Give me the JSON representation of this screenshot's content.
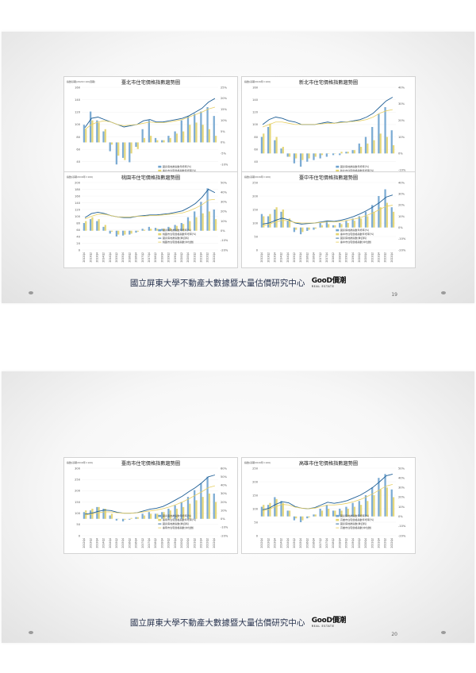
{
  "pages": [
    {
      "footer": "國立屏東大學不動產大數據暨大量估價研究中心",
      "logo": "GooD價潮",
      "logo_sub": "REAL ESTATE",
      "page_number": "19"
    },
    {
      "footer": "國立屏東大學不動產大數據暨大量估價研究中心",
      "logo": "GooD價潮",
      "logo_sub": "REAL ESTATE",
      "page_number": "20"
    }
  ],
  "colors": {
    "bar": "#6fa3cf",
    "bar2": "#e3d46e",
    "line_main": "#1f5f96",
    "line_yellow": "#e7cf63",
    "line_green": "#a9cf62"
  },
  "chart_data": [
    {
      "type": "line",
      "title": "臺北市住宅價格指數趨勢圖",
      "ylabel": "指數基期(2020=100週期)",
      "ylim": [
        0,
        160
      ],
      "y_ticks": [
        "160",
        "140",
        "120",
        "100",
        "80",
        "60",
        "40",
        "20",
        "0"
      ],
      "y2_ticks": [
        "25%",
        "20%",
        "15%",
        "10%",
        "5%",
        "0%",
        "-5%",
        "-10%",
        "-15%",
        "-20%"
      ],
      "categories": [
        "2012Q4",
        "2013Q2",
        "2013Q4",
        "2014Q2",
        "2014Q4",
        "2015Q2",
        "2015Q4",
        "2016Q2",
        "2016Q4",
        "2017Q2",
        "2017Q4",
        "2018Q2",
        "2018Q4",
        "2019Q2",
        "2019Q4",
        "2020Q2",
        "2020Q4",
        "2021Q2",
        "2021Q4",
        "2022Q2",
        "2022Q4"
      ],
      "series": [
        {
          "name": "國泰房地產指數年增率(%)",
          "kind": "bar",
          "axis": "right",
          "values": [
            8,
            14,
            10,
            5,
            -4,
            -10,
            -7,
            -9,
            -2,
            6,
            10,
            2,
            1,
            3,
            5,
            10,
            12,
            13,
            14,
            16,
            12
          ]
        },
        {
          "name": "臺北市住宅價格指數年增率(%)",
          "kind": "bar2",
          "axis": "right",
          "values": [
            6,
            10,
            9,
            6,
            -1,
            -6,
            -8,
            -5,
            -3,
            2,
            3,
            1,
            1,
            2,
            4,
            5,
            8,
            9,
            8,
            6,
            3
          ]
        },
        {
          "name": "國泰房地產指數(季資料)",
          "kind": "line",
          "axis": "left",
          "values": [
            95,
            110,
            112,
            108,
            104,
            100,
            96,
            98,
            100,
            106,
            108,
            104,
            104,
            106,
            108,
            110,
            114,
            120,
            126,
            136,
            142
          ]
        },
        {
          "name": "臺北市住宅價格指數(中位數)",
          "kind": "line2",
          "axis": "left",
          "values": [
            92,
            100,
            104,
            106,
            104,
            100,
            98,
            99,
            100,
            102,
            104,
            103,
            103,
            104,
            106,
            108,
            112,
            116,
            120,
            125,
            128
          ]
        }
      ]
    },
    {
      "type": "line",
      "title": "新北市住宅價格指數趨勢圖",
      "ylabel": "指數(基期2016年=100)",
      "ylim": [
        0,
        160
      ],
      "y_ticks": [
        "160",
        "140",
        "120",
        "100",
        "80",
        "60",
        "40",
        "20",
        "0"
      ],
      "y2_ticks": [
        "40%",
        "30%",
        "20%",
        "10%",
        "0%",
        "-10%",
        "-20%"
      ],
      "categories": [
        "2012Q4",
        "2013Q2",
        "2013Q4",
        "2014Q2",
        "2014Q4",
        "2015Q2",
        "2015Q4",
        "2016Q2",
        "2016Q4",
        "2017Q2",
        "2017Q4",
        "2018Q2",
        "2018Q4",
        "2019Q2",
        "2019Q4",
        "2020Q2",
        "2020Q4",
        "2021Q2",
        "2021Q4",
        "2022Q2",
        "2022Q4"
      ],
      "series": [
        {
          "name": "國泰房地產指數年增率(%)",
          "kind": "bar",
          "axis": "right",
          "values": [
            10,
            16,
            8,
            3,
            -2,
            -6,
            -8,
            -5,
            -4,
            -3,
            -2,
            -1,
            -1,
            1,
            2,
            6,
            10,
            16,
            24,
            28,
            14
          ]
        },
        {
          "name": "新北市住宅價格指數年增率(%)",
          "kind": "bar2",
          "axis": "right",
          "values": [
            12,
            18,
            10,
            4,
            -2,
            -3,
            -4,
            -3,
            -2,
            -1,
            0,
            0,
            1,
            1,
            2,
            4,
            6,
            8,
            12,
            10,
            5
          ]
        },
        {
          "name": "國泰房地產指數(季資料)",
          "kind": "line",
          "axis": "left",
          "values": [
            100,
            108,
            112,
            110,
            106,
            104,
            100,
            100,
            100,
            102,
            104,
            102,
            104,
            104,
            106,
            108,
            112,
            118,
            128,
            138,
            144
          ]
        },
        {
          "name": "新北市住宅價格指數(中位數)",
          "kind": "line2",
          "axis": "left",
          "values": [
            96,
            100,
            104,
            104,
            102,
            100,
            100,
            100,
            100,
            101,
            102,
            102,
            103,
            104,
            105,
            106,
            108,
            112,
            118,
            122,
            124
          ]
        }
      ]
    },
    {
      "type": "line",
      "title": "桃園市住宅價格指數趨勢圖",
      "ylabel": "指數(基期2016年=100)",
      "ylim": [
        0,
        200
      ],
      "y_ticks": [
        "200",
        "180",
        "160",
        "140",
        "120",
        "100",
        "80",
        "60",
        "40",
        "20",
        "0"
      ],
      "y2_ticks": [
        "50%",
        "40%",
        "30%",
        "20%",
        "10%",
        "0%",
        "-10%",
        "-20%"
      ],
      "categories": [
        "2012Q4",
        "2013Q2",
        "2013Q4",
        "2014Q2",
        "2014Q4",
        "2015Q2",
        "2015Q4",
        "2016Q2",
        "2016Q4",
        "2017Q2",
        "2017Q4",
        "2018Q2",
        "2018Q4",
        "2019Q2",
        "2019Q4",
        "2020Q2",
        "2020Q4",
        "2021Q2",
        "2021Q4",
        "2022Q2",
        "2022Q4"
      ],
      "series": [
        {
          "name": "國泰房地產指數年增率(%)",
          "kind": "bar",
          "axis": "right",
          "values": [
            8,
            12,
            10,
            4,
            -3,
            -6,
            -5,
            -4,
            -2,
            2,
            4,
            3,
            2,
            4,
            6,
            8,
            14,
            20,
            30,
            44,
            22
          ]
        },
        {
          "name": "桃園市住宅價格指數年增率(%)",
          "kind": "bar2",
          "axis": "right",
          "values": [
            10,
            14,
            12,
            6,
            -1,
            -4,
            -4,
            -3,
            -1,
            1,
            2,
            2,
            2,
            3,
            5,
            7,
            10,
            14,
            18,
            20,
            12
          ]
        },
        {
          "name": "國泰房地產指數(季資料)",
          "kind": "line",
          "axis": "left",
          "values": [
            96,
            108,
            112,
            108,
            102,
            98,
            96,
            96,
            100,
            102,
            104,
            104,
            106,
            108,
            112,
            116,
            126,
            138,
            156,
            180,
            170
          ]
        },
        {
          "name": "桃園市住宅價格指數(中位數)",
          "kind": "line2",
          "axis": "left",
          "values": [
            92,
            100,
            106,
            106,
            102,
            98,
            98,
            98,
            100,
            100,
            102,
            102,
            104,
            106,
            108,
            110,
            116,
            124,
            134,
            148,
            150
          ]
        }
      ]
    },
    {
      "type": "line",
      "title": "臺中市住宅價格指數趨勢圖",
      "ylabel": "指數(基期2016年=100)",
      "ylim": [
        0,
        250
      ],
      "y_ticks": [
        "250",
        "200",
        "150",
        "100",
        "50",
        "0"
      ],
      "y2_ticks": [
        "40%",
        "30%",
        "20%",
        "10%",
        "0%",
        "-10%",
        "-20%"
      ],
      "categories": [
        "2012Q4",
        "2013Q2",
        "2013Q4",
        "2014Q2",
        "2014Q4",
        "2015Q2",
        "2015Q4",
        "2016Q2",
        "2016Q4",
        "2017Q2",
        "2017Q4",
        "2018Q2",
        "2018Q4",
        "2019Q2",
        "2019Q4",
        "2020Q2",
        "2020Q4",
        "2021Q2",
        "2021Q4",
        "2022Q2",
        "2022Q4"
      ],
      "series": [
        {
          "name": "國泰房地產指數年增率(%)",
          "kind": "bar",
          "axis": "right",
          "values": [
            12,
            10,
            16,
            14,
            6,
            -4,
            -6,
            -3,
            -2,
            4,
            6,
            2,
            4,
            6,
            8,
            10,
            14,
            20,
            28,
            34,
            18
          ]
        },
        {
          "name": "臺中市住宅價格指數年增率(%)",
          "kind": "bar2",
          "axis": "right",
          "values": [
            10,
            12,
            18,
            16,
            8,
            -2,
            -4,
            -2,
            -1,
            2,
            3,
            2,
            3,
            4,
            6,
            8,
            10,
            14,
            18,
            22,
            14
          ]
        },
        {
          "name": "國泰房地產指數(季資料)",
          "kind": "line",
          "axis": "left",
          "values": [
            96,
            100,
            110,
            118,
            112,
            100,
            96,
            98,
            100,
            104,
            108,
            106,
            110,
            116,
            124,
            134,
            146,
            160,
            176,
            196,
            204
          ]
        },
        {
          "name": "臺中市住宅價格指數(中位數)",
          "kind": "line2",
          "axis": "left",
          "values": [
            90,
            96,
            104,
            110,
            108,
            102,
            100,
            100,
            100,
            102,
            104,
            104,
            106,
            110,
            114,
            120,
            128,
            138,
            150,
            162,
            166
          ]
        }
      ]
    },
    {
      "type": "line",
      "title": "臺南市住宅價格指數趨勢圖",
      "ylabel": "指數(基期2016年=100)",
      "ylim": [
        0,
        300
      ],
      "y_ticks": [
        "300",
        "250",
        "200",
        "150",
        "100",
        "50",
        "0"
      ],
      "y2_ticks": [
        "60%",
        "50%",
        "40%",
        "30%",
        "20%",
        "10%",
        "0%",
        "-10%",
        "-20%"
      ],
      "categories": [
        "2012Q4",
        "2013Q2",
        "2013Q4",
        "2014Q2",
        "2014Q4",
        "2015Q2",
        "2015Q4",
        "2016Q2",
        "2016Q4",
        "2017Q2",
        "2017Q4",
        "2018Q2",
        "2018Q4",
        "2019Q2",
        "2019Q4",
        "2020Q2",
        "2020Q4",
        "2021Q2",
        "2021Q4",
        "2022Q2",
        "2022Q4"
      ],
      "series": [
        {
          "name": "國泰房地產指數年增率(%)",
          "kind": "bar",
          "axis": "right",
          "values": [
            8,
            10,
            14,
            12,
            4,
            -2,
            -3,
            -1,
            2,
            6,
            8,
            6,
            8,
            12,
            16,
            20,
            26,
            34,
            42,
            50,
            30
          ]
        },
        {
          "name": "臺南市住宅價格指數年增率(%)",
          "kind": "bar2",
          "axis": "right",
          "values": [
            10,
            12,
            14,
            12,
            6,
            0,
            -1,
            1,
            2,
            4,
            6,
            6,
            8,
            10,
            12,
            14,
            18,
            22,
            26,
            30,
            20
          ]
        },
        {
          "name": "國泰房地產指數(季資料)",
          "kind": "line",
          "axis": "left",
          "values": [
            96,
            100,
            108,
            114,
            112,
            104,
            100,
            100,
            102,
            110,
            118,
            122,
            130,
            144,
            160,
            176,
            196,
            214,
            236,
            262,
            270
          ]
        },
        {
          "name": "臺南市住宅價格指數(中位數)",
          "kind": "line2",
          "axis": "left",
          "values": [
            92,
            96,
            102,
            106,
            106,
            102,
            100,
            100,
            102,
            106,
            110,
            114,
            120,
            128,
            138,
            150,
            164,
            180,
            196,
            214,
            222
          ]
        }
      ]
    },
    {
      "type": "line",
      "title": "高雄市住宅價格指數趨勢圖",
      "ylabel": "指數(基期2016年=100)",
      "ylim": [
        0,
        250
      ],
      "y_ticks": [
        "250",
        "200",
        "150",
        "100",
        "50",
        "0"
      ],
      "y2_ticks": [
        "50%",
        "40%",
        "30%",
        "20%",
        "10%",
        "0%",
        "-10%",
        "-20%"
      ],
      "categories": [
        "2012Q4",
        "2013Q2",
        "2013Q4",
        "2014Q2",
        "2014Q4",
        "2015Q2",
        "2015Q4",
        "2016Q2",
        "2016Q4",
        "2017Q2",
        "2017Q4",
        "2018Q2",
        "2018Q4",
        "2019Q2",
        "2019Q4",
        "2020Q2",
        "2020Q4",
        "2021Q2",
        "2021Q4",
        "2022Q2",
        "2022Q4"
      ],
      "series": [
        {
          "name": "國泰房地產指數年增率(%)",
          "kind": "bar",
          "axis": "right",
          "values": [
            10,
            12,
            20,
            16,
            6,
            -4,
            -6,
            -2,
            2,
            8,
            12,
            6,
            8,
            10,
            14,
            16,
            22,
            30,
            40,
            44,
            28
          ]
        },
        {
          "name": "高雄市住宅價格指數年增率(%)",
          "kind": "bar2",
          "axis": "right",
          "values": [
            12,
            14,
            18,
            14,
            6,
            -2,
            -4,
            -1,
            2,
            6,
            8,
            6,
            6,
            8,
            10,
            12,
            16,
            22,
            28,
            30,
            20
          ]
        },
        {
          "name": "國泰房地產指數(季資料)",
          "kind": "line",
          "axis": "left",
          "values": [
            96,
            102,
            116,
            126,
            122,
            108,
            102,
            100,
            104,
            114,
            124,
            120,
            124,
            130,
            140,
            150,
            164,
            180,
            200,
            222,
            228
          ]
        },
        {
          "name": "高雄市住宅價格指數(中位數)",
          "kind": "line2",
          "axis": "left",
          "values": [
            92,
            98,
            108,
            116,
            114,
            106,
            102,
            100,
            102,
            108,
            114,
            114,
            116,
            120,
            126,
            134,
            144,
            156,
            170,
            184,
            190
          ]
        }
      ]
    }
  ]
}
